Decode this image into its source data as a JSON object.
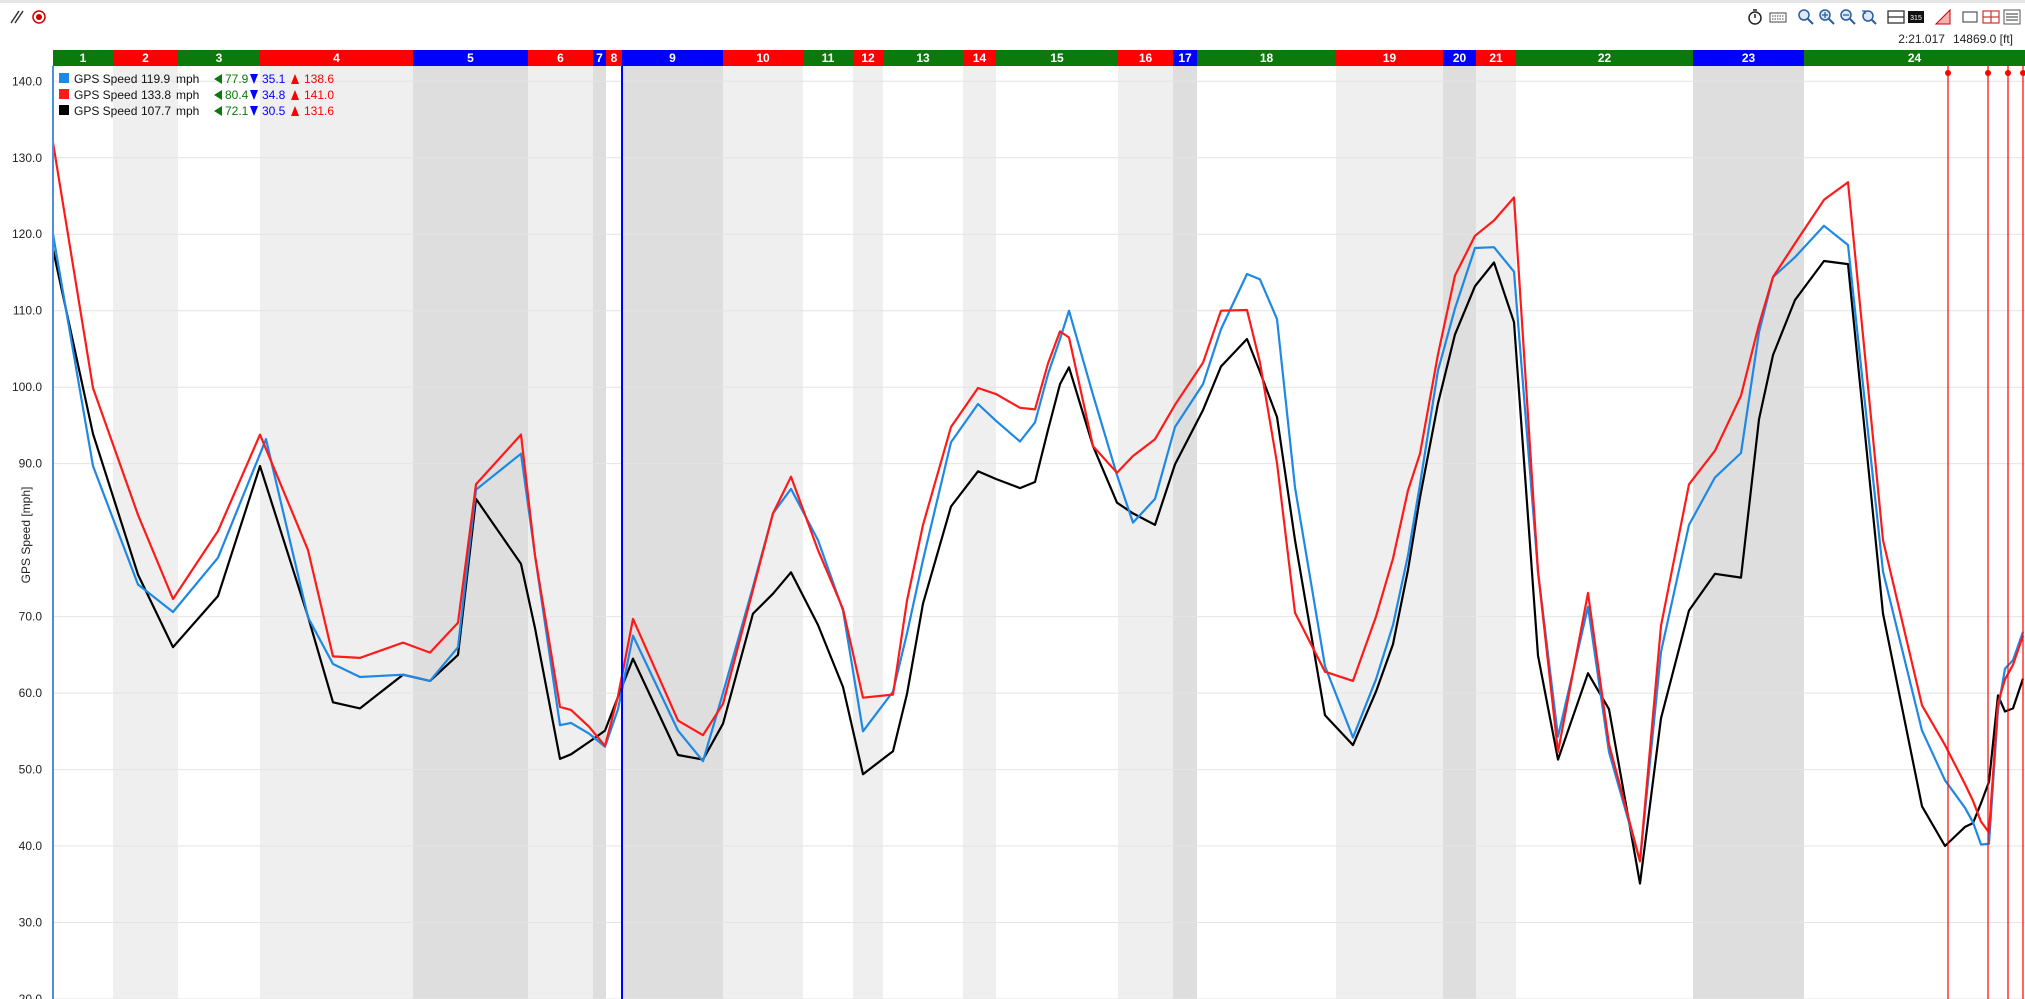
{
  "toolbar": {
    "icons": [
      "measure-icon",
      "record-icon",
      "stopwatch-icon",
      "keyboard-icon",
      "zoom-fit-icon",
      "zoom-in-icon",
      "zoom-out-icon",
      "zoom-reset-icon",
      "layout-icon",
      "counter-icon",
      "gradient-icon",
      "window-icon",
      "split-view-icon",
      "menu-icon"
    ]
  },
  "readout": {
    "time": "2:21.017",
    "distance": "14869.0 [ft]"
  },
  "chart_data": {
    "type": "line",
    "ylabel": "GPS Speed [mph]",
    "ylim": [
      20,
      142
    ],
    "yticks": [
      20,
      30,
      40,
      50,
      60,
      70,
      90,
      100,
      110,
      120,
      130,
      140
    ],
    "ytick_labels": [
      "20.0",
      "30.0",
      "40.0",
      "50.0",
      "60.0",
      "70.0",
      "90.0",
      "100.0",
      "110.0",
      "120.0",
      "130.0",
      "140.0"
    ],
    "grid": true,
    "legend_position": "top-left",
    "segments": [
      {
        "label": "1",
        "color": "#0b7a0b",
        "start": 0,
        "end": 60
      },
      {
        "label": "2",
        "color": "#ff0000",
        "start": 60,
        "end": 125
      },
      {
        "label": "3",
        "color": "#0b7a0b",
        "start": 125,
        "end": 207
      },
      {
        "label": "4",
        "color": "#ff0000",
        "start": 207,
        "end": 360
      },
      {
        "label": "5",
        "color": "#0000ff",
        "start": 360,
        "end": 475
      },
      {
        "label": "6",
        "color": "#ff0000",
        "start": 475,
        "end": 540
      },
      {
        "label": "7",
        "color": "#0000ff",
        "start": 540,
        "end": 553
      },
      {
        "label": "8",
        "color": "#ff0000",
        "start": 553,
        "end": 569
      },
      {
        "label": "9",
        "color": "#0000ff",
        "start": 569,
        "end": 670
      },
      {
        "label": "10",
        "color": "#ff0000",
        "start": 670,
        "end": 750
      },
      {
        "label": "11",
        "color": "#0b7a0b",
        "start": 750,
        "end": 800
      },
      {
        "label": "12",
        "color": "#ff0000",
        "start": 800,
        "end": 830
      },
      {
        "label": "13",
        "color": "#0b7a0b",
        "start": 830,
        "end": 910
      },
      {
        "label": "14",
        "color": "#ff0000",
        "start": 910,
        "end": 943
      },
      {
        "label": "15",
        "color": "#0b7a0b",
        "start": 943,
        "end": 1065
      },
      {
        "label": "16",
        "color": "#ff0000",
        "start": 1065,
        "end": 1120
      },
      {
        "label": "17",
        "color": "#0000ff",
        "start": 1120,
        "end": 1144
      },
      {
        "label": "18",
        "color": "#0b7a0b",
        "start": 1144,
        "end": 1283
      },
      {
        "label": "19",
        "color": "#ff0000",
        "start": 1283,
        "end": 1390
      },
      {
        "label": "20",
        "color": "#0000ff",
        "start": 1390,
        "end": 1423
      },
      {
        "label": "21",
        "color": "#ff0000",
        "start": 1423,
        "end": 1463
      },
      {
        "label": "22",
        "color": "#0b7a0b",
        "start": 1463,
        "end": 1640
      },
      {
        "label": "23",
        "color": "#0000ff",
        "start": 1640,
        "end": 1751
      },
      {
        "label": "24",
        "color": "#0b7a0b",
        "start": 1751,
        "end": 1972
      }
    ],
    "shaded_bands": [
      {
        "start": 60,
        "end": 125,
        "shade": "light"
      },
      {
        "start": 207,
        "end": 360,
        "shade": "light"
      },
      {
        "start": 360,
        "end": 475,
        "shade": "dark"
      },
      {
        "start": 475,
        "end": 540,
        "shade": "light"
      },
      {
        "start": 540,
        "end": 553,
        "shade": "dark"
      },
      {
        "start": 569,
        "end": 670,
        "shade": "dark"
      },
      {
        "start": 670,
        "end": 750,
        "shade": "light"
      },
      {
        "start": 800,
        "end": 830,
        "shade": "light"
      },
      {
        "start": 910,
        "end": 943,
        "shade": "light"
      },
      {
        "start": 1065,
        "end": 1120,
        "shade": "light"
      },
      {
        "start": 1120,
        "end": 1144,
        "shade": "dark"
      },
      {
        "start": 1283,
        "end": 1390,
        "shade": "light"
      },
      {
        "start": 1390,
        "end": 1423,
        "shade": "dark"
      },
      {
        "start": 1423,
        "end": 1463,
        "shade": "light"
      },
      {
        "start": 1640,
        "end": 1751,
        "shade": "dark"
      }
    ],
    "cursor_x": 569,
    "markers_x": [
      1895,
      1935,
      1955,
      1970
    ],
    "series": [
      {
        "name": "GPS Speed",
        "value": "119.9",
        "unit": "mph",
        "min_exit": "77.9",
        "min": "35.1",
        "max": "138.6",
        "color": "#1e88e5",
        "x": [
          0,
          40,
          85,
          120,
          165,
          213,
          255,
          280,
          307,
          350,
          377,
          405,
          423,
          468,
          482,
          507,
          518,
          536,
          552,
          565,
          580,
          625,
          650,
          670,
          700,
          720,
          738,
          765,
          790,
          810,
          840,
          854,
          870,
          898,
          925,
          943,
          967,
          982,
          995,
          1007,
          1016,
          1040,
          1064,
          1080,
          1102,
          1122,
          1150,
          1168,
          1194,
          1207,
          1224,
          1242,
          1272,
          1300,
          1323,
          1340,
          1355,
          1367,
          1385,
          1402,
          1422,
          1441,
          1461,
          1485,
          1505,
          1535,
          1556,
          1587,
          1608,
          1636,
          1662,
          1688,
          1706,
          1720,
          1742,
          1771,
          1795,
          1830,
          1869,
          1892,
          1912,
          1920,
          1928,
          1936,
          1945,
          1952,
          1960,
          1970
        ],
        "y": [
          120,
          89.7,
          74.2,
          70.6,
          77.7,
          93.2,
          69.9,
          63.8,
          62.1,
          62.4,
          61.6,
          66.0,
          86.6,
          91.3,
          78.0,
          55.8,
          56.1,
          54.7,
          53.0,
          57.9,
          67.5,
          55.1,
          51.1,
          60.0,
          73.9,
          83.5,
          86.7,
          80.0,
          70.8,
          55.0,
          60.2,
          67.8,
          77.4,
          92.8,
          97.8,
          95.6,
          92.9,
          95.4,
          101.7,
          106.3,
          110.0,
          99.0,
          88.5,
          82.3,
          85.4,
          94.8,
          100.4,
          107.6,
          114.8,
          114.1,
          108.9,
          86.9,
          63.5,
          54.2,
          61.8,
          68.9,
          78.0,
          87.3,
          102.2,
          110.3,
          118.2,
          118.3,
          115.1,
          75.9,
          54.3,
          71.3,
          52.3,
          38.0,
          65.4,
          82.0,
          88.2,
          91.4,
          107.2,
          114.4,
          117.0,
          121.1,
          118.6,
          75.9,
          55.1,
          48.6,
          45.0,
          43.1,
          40.2,
          40.3,
          57.9,
          63.2,
          64.3,
          68.0
        ]
      },
      {
        "name": "GPS Speed",
        "value": "133.8",
        "unit": "mph",
        "min_exit": "80.4",
        "min": "34.8",
        "max": "141.0",
        "color": "#ff1a1a",
        "x": [
          0,
          40,
          85,
          120,
          165,
          207,
          255,
          280,
          307,
          350,
          377,
          405,
          423,
          468,
          482,
          507,
          518,
          536,
          552,
          565,
          580,
          625,
          650,
          670,
          700,
          720,
          738,
          765,
          790,
          810,
          840,
          854,
          870,
          898,
          925,
          943,
          967,
          982,
          995,
          1007,
          1016,
          1040,
          1064,
          1080,
          1102,
          1122,
          1150,
          1168,
          1194,
          1207,
          1224,
          1242,
          1272,
          1300,
          1323,
          1340,
          1355,
          1367,
          1385,
          1402,
          1422,
          1441,
          1461,
          1485,
          1505,
          1535,
          1556,
          1587,
          1608,
          1636,
          1662,
          1688,
          1706,
          1720,
          1742,
          1771,
          1795,
          1830,
          1869,
          1892,
          1912,
          1920,
          1928,
          1936,
          1945,
          1952,
          1960,
          1970
        ],
        "y": [
          132,
          99.9,
          83.3,
          72.3,
          81.2,
          93.8,
          78.7,
          64.8,
          64.6,
          66.6,
          65.3,
          69.2,
          87.3,
          93.8,
          78.0,
          58.2,
          57.8,
          55.6,
          53.1,
          59.6,
          69.7,
          56.4,
          54.5,
          58.6,
          73.5,
          83.5,
          88.3,
          78.7,
          71.0,
          59.4,
          59.8,
          72.1,
          82.0,
          94.8,
          99.9,
          99.1,
          97.3,
          97.1,
          103.1,
          107.3,
          106.5,
          92.3,
          88.8,
          91.0,
          93.2,
          97.7,
          103.2,
          110.0,
          110.1,
          103.2,
          90.1,
          70.5,
          62.8,
          61.6,
          70.0,
          77.6,
          86.5,
          91.3,
          104.3,
          114.6,
          119.8,
          121.8,
          124.8,
          75.9,
          52.3,
          73.1,
          53.3,
          38.0,
          68.8,
          87.3,
          91.7,
          98.9,
          108.2,
          114.4,
          118.8,
          124.5,
          126.8,
          80.0,
          58.4,
          53.2,
          48.1,
          45.9,
          43.2,
          41.8,
          58.7,
          61.8,
          63.7,
          67.5
        ]
      },
      {
        "name": "GPS Speed",
        "value": "107.7",
        "unit": "mph",
        "min_exit": "72.1",
        "min": "30.5",
        "max": "131.6",
        "color": "#000000",
        "x": [
          0,
          40,
          85,
          120,
          165,
          207,
          255,
          280,
          307,
          350,
          377,
          405,
          423,
          468,
          482,
          507,
          518,
          536,
          552,
          565,
          580,
          625,
          650,
          670,
          700,
          720,
          738,
          765,
          790,
          810,
          840,
          854,
          870,
          898,
          925,
          943,
          967,
          982,
          995,
          1007,
          1016,
          1040,
          1064,
          1080,
          1102,
          1122,
          1150,
          1168,
          1194,
          1207,
          1224,
          1242,
          1272,
          1300,
          1323,
          1340,
          1355,
          1367,
          1385,
          1402,
          1422,
          1441,
          1461,
          1485,
          1505,
          1535,
          1556,
          1587,
          1608,
          1636,
          1662,
          1688,
          1706,
          1720,
          1742,
          1771,
          1795,
          1830,
          1869,
          1892,
          1912,
          1920,
          1928,
          1936,
          1945,
          1952,
          1960,
          1970
        ],
        "y": [
          118,
          93.9,
          75.5,
          66.0,
          72.7,
          89.7,
          70.0,
          58.8,
          58.0,
          62.4,
          61.6,
          65.0,
          85.4,
          76.9,
          68.5,
          51.4,
          52.0,
          53.6,
          55.1,
          59.5,
          64.5,
          51.9,
          51.3,
          56.0,
          70.4,
          73.0,
          75.8,
          68.9,
          60.8,
          49.4,
          52.4,
          59.9,
          71.7,
          84.4,
          89.0,
          88.0,
          86.8,
          87.6,
          94.4,
          100.4,
          102.6,
          92.3,
          84.9,
          83.5,
          82.0,
          89.9,
          97.0,
          102.7,
          106.3,
          102.0,
          96.1,
          80.0,
          57.1,
          53.2,
          60.2,
          66.4,
          76.1,
          85.6,
          97.9,
          106.9,
          113.2,
          116.3,
          108.5,
          64.9,
          51.3,
          62.6,
          57.9,
          35.1,
          56.7,
          70.8,
          75.6,
          75.1,
          95.8,
          104.2,
          111.4,
          116.5,
          116.1,
          70.4,
          45.2,
          40.0,
          42.5,
          43.0,
          45.6,
          48.4,
          59.7,
          57.6,
          58.0,
          61.9
        ]
      }
    ]
  }
}
